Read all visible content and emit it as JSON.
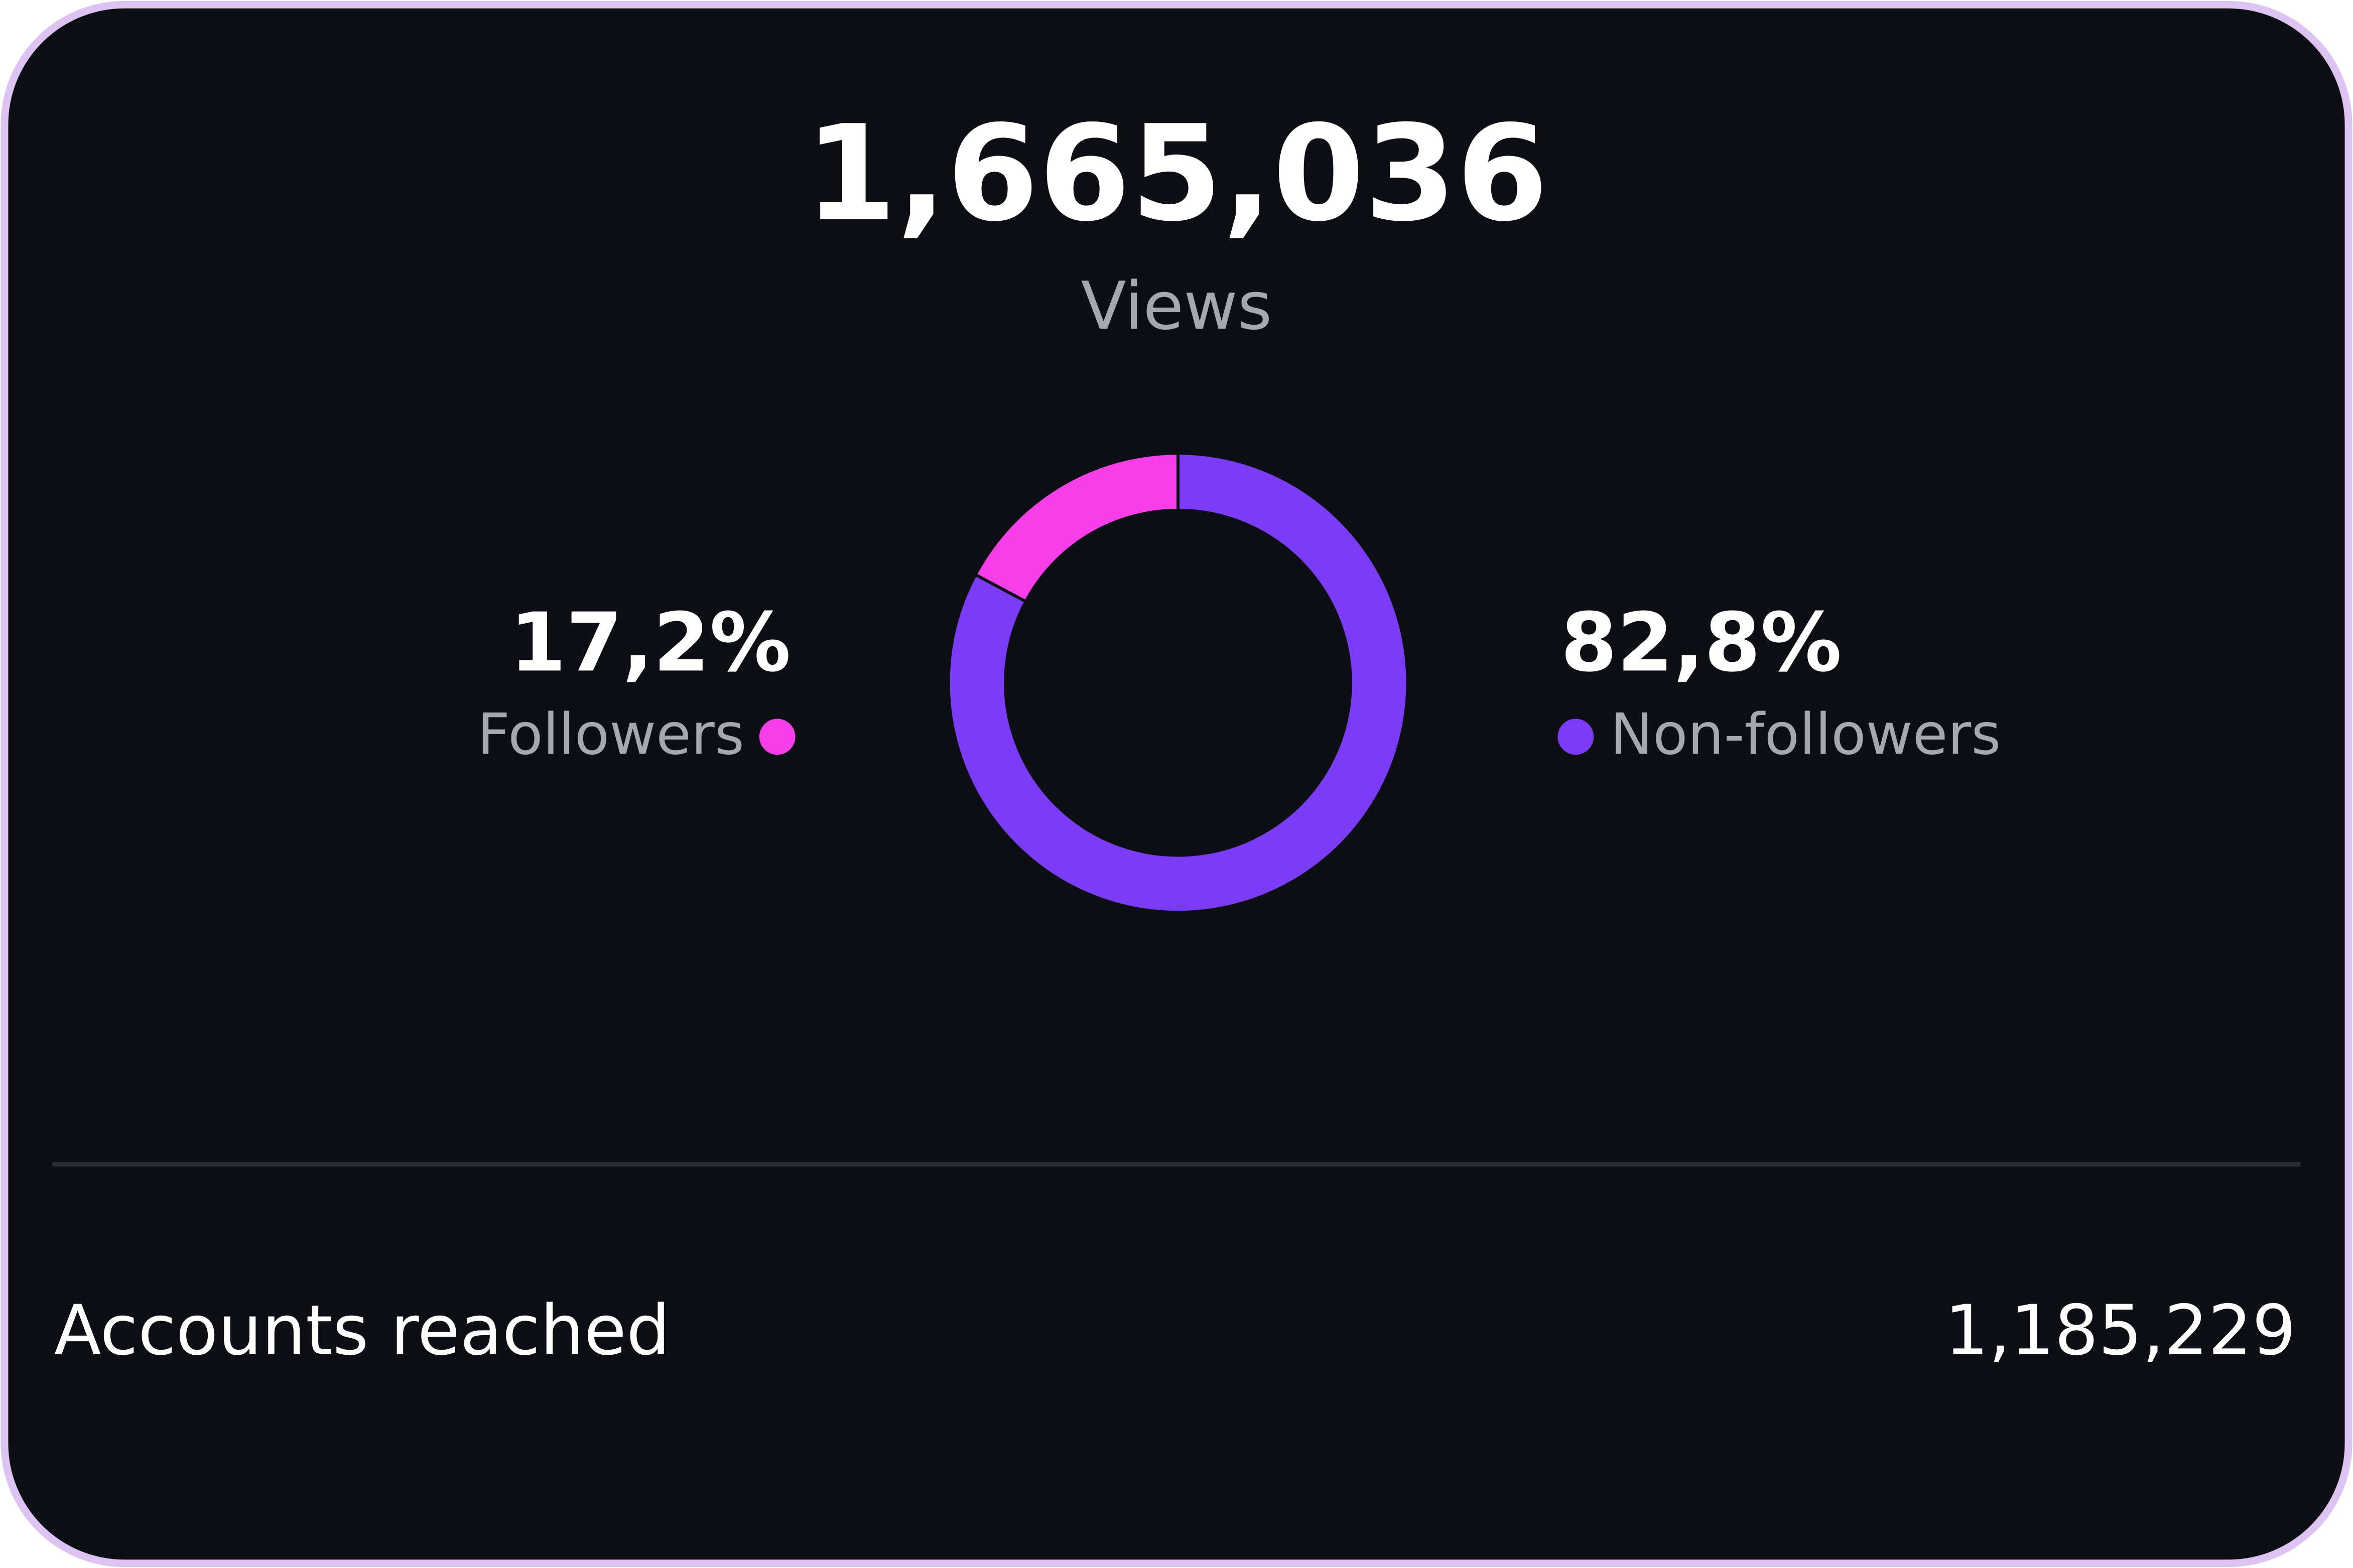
{
  "chart_data": {
    "type": "donut",
    "headline": "1,665,036",
    "headline_label": "Views",
    "categories": [
      "Followers",
      "Non-followers"
    ],
    "values": [
      17.2,
      82.8
    ],
    "value_labels": [
      "17,2%",
      "82,8%"
    ],
    "colors": [
      "#f53ee8",
      "#7b3cf5"
    ],
    "footer": {
      "label": "Accounts reached",
      "value": "1,185,229"
    }
  }
}
